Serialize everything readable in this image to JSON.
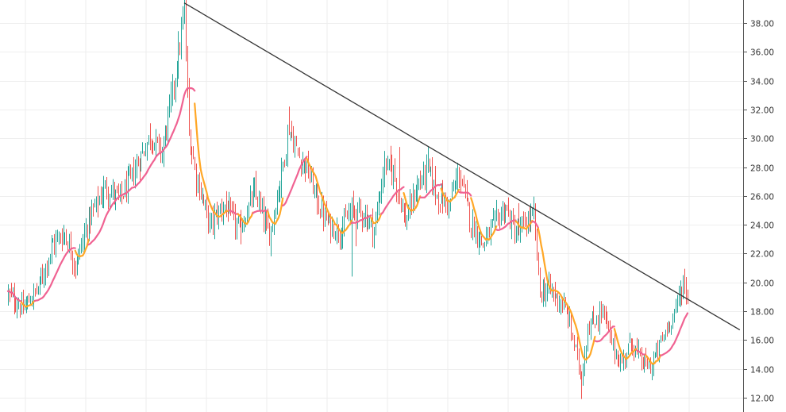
{
  "chart_data": {
    "type": "candlestick",
    "y_axis": {
      "position": "right",
      "ylim": [
        11.0,
        39.6
      ],
      "ticks": [
        "12.00",
        "14.00",
        "16.00",
        "18.00",
        "20.00",
        "22.00",
        "24.00",
        "26.00",
        "28.00",
        "30.00",
        "32.00",
        "34.00",
        "36.00",
        "38.00"
      ]
    },
    "x_axis": {
      "tick_labels": []
    },
    "grid": true,
    "colors": {
      "up": "#26a69a",
      "down": "#ef5350",
      "ma_fast": "#f06292",
      "ma_slow": "#ffa726",
      "trendline": "#333333",
      "grid": "#eeeeee",
      "axis": "#555555"
    },
    "price_anchors": [
      [
        0,
        19.2
      ],
      [
        10,
        18.1
      ],
      [
        20,
        19.6
      ],
      [
        30,
        22.7
      ],
      [
        38,
        23.4
      ],
      [
        45,
        21.2
      ],
      [
        55,
        24.6
      ],
      [
        65,
        26.6
      ],
      [
        75,
        25.8
      ],
      [
        85,
        27.8
      ],
      [
        95,
        30.2
      ],
      [
        103,
        29.0
      ],
      [
        112,
        34.4
      ],
      [
        118,
        38.8
      ],
      [
        121,
        30.2
      ],
      [
        126,
        27.4
      ],
      [
        135,
        24.0
      ],
      [
        145,
        25.4
      ],
      [
        155,
        23.6
      ],
      [
        165,
        26.3
      ],
      [
        175,
        23.2
      ],
      [
        183,
        27.6
      ],
      [
        188,
        30.8
      ],
      [
        194,
        28.8
      ],
      [
        200,
        28.0
      ],
      [
        208,
        25.3
      ],
      [
        215,
        24.0
      ],
      [
        222,
        23.5
      ],
      [
        230,
        25.0
      ],
      [
        238,
        24.8
      ],
      [
        245,
        23.6
      ],
      [
        252,
        28.2
      ],
      [
        258,
        27.7
      ],
      [
        266,
        24.2
      ],
      [
        274,
        26.6
      ],
      [
        281,
        28.0
      ],
      [
        287,
        26.0
      ],
      [
        295,
        25.4
      ],
      [
        302,
        27.6
      ],
      [
        310,
        24.1
      ],
      [
        318,
        22.6
      ],
      [
        325,
        24.0
      ],
      [
        333,
        25.2
      ],
      [
        340,
        23.2
      ],
      [
        348,
        24.3
      ],
      [
        352,
        24.6
      ],
      [
        356,
        19.2
      ],
      [
        362,
        19.6
      ],
      [
        370,
        18.6
      ],
      [
        375,
        17.6
      ],
      [
        380,
        15.2
      ],
      [
        384,
        13.4
      ],
      [
        388,
        16.8
      ],
      [
        393,
        17.3
      ],
      [
        398,
        18.1
      ],
      [
        403,
        16.1
      ],
      [
        410,
        14.3
      ],
      [
        417,
        15.9
      ],
      [
        424,
        14.5
      ],
      [
        430,
        14.1
      ],
      [
        435,
        15.3
      ],
      [
        441,
        16.8
      ],
      [
        447,
        18.2
      ],
      [
        452,
        20.0
      ],
      [
        455,
        19.2
      ]
    ],
    "wicks": [
      [
        384,
        11.9
      ],
      [
        118,
        39.4
      ],
      [
        188,
        32.2
      ],
      [
        262,
        29.4
      ],
      [
        342,
        25.5
      ],
      [
        230,
        20.4
      ],
      [
        233,
        22.5
      ]
    ],
    "series": [
      {
        "type": "moving_average",
        "period": 9
      },
      {
        "type": "moving_average",
        "period": 20
      }
    ],
    "trendline": {
      "from": [
        118,
        39.4
      ],
      "to": [
        490,
        16.7
      ]
    }
  }
}
